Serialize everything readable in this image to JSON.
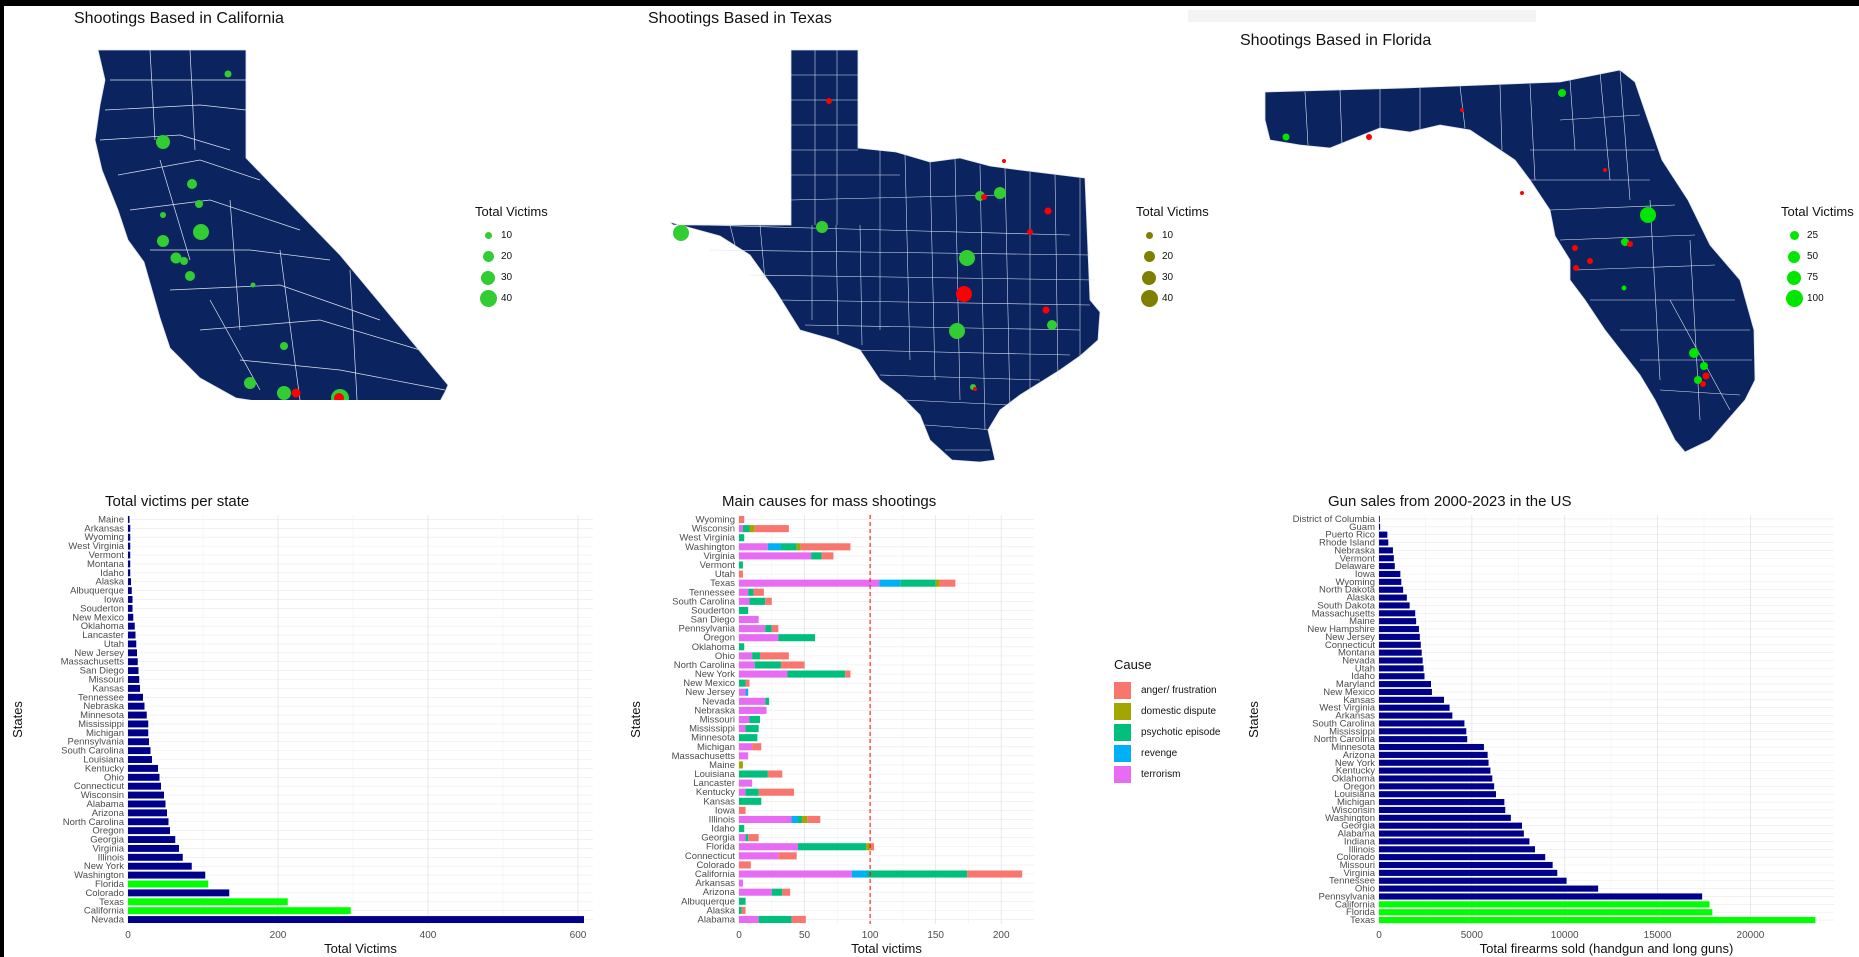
{
  "maps": [
    {
      "title": "Shootings Based in California",
      "legend_title": "Total Victims",
      "legend_labels": [
        "10",
        "20",
        "30",
        "40"
      ],
      "dot_color": "#32cd32"
    },
    {
      "title": "Shootings Based in Texas",
      "legend_title": "Total Victims",
      "legend_labels": [
        "10",
        "20",
        "30",
        "40"
      ],
      "dot_color": "#808000"
    },
    {
      "title": "Shootings Based in Florida",
      "legend_title": "Total Victims",
      "legend_labels": [
        "25",
        "50",
        "75",
        "100"
      ],
      "dot_color": "#00e600"
    }
  ],
  "colors": {
    "map_fill": "#0b2460",
    "point_green": "#32cd32",
    "point_red": "#ff0000",
    "bar_navy": "#00008b",
    "bar_green": "#00ff00"
  },
  "chart_data": [
    {
      "type": "bar",
      "orientation": "horizontal",
      "title": "Total victims per state",
      "xlabel": "Total Victims",
      "ylabel": "States",
      "xlim": [
        0,
        620
      ],
      "xticks": [
        0,
        200,
        400,
        600
      ],
      "highlight": [
        "Florida",
        "Texas",
        "California"
      ],
      "categories": [
        "Maine",
        "Arkansas",
        "Wyoming",
        "West Virginia",
        "Vermont",
        "Montana",
        "Idaho",
        "Alaska",
        "Albuquerque",
        "Iowa",
        "Souderton",
        "New Mexico",
        "Oklahoma",
        "Lancaster",
        "Utah",
        "New Jersey",
        "Massachusetts",
        "San Diego",
        "Missouri",
        "Kansas",
        "Tennessee",
        "Nebraska",
        "Minnesota",
        "Mississippi",
        "Michigan",
        "Pennsylvania",
        "South Carolina",
        "Louisiana",
        "Kentucky",
        "Ohio",
        "Connecticut",
        "Wisconsin",
        "Alabama",
        "Arizona",
        "North Carolina",
        "Oregon",
        "Georgia",
        "Virginia",
        "Illinois",
        "New York",
        "Washington",
        "Florida",
        "Colorado",
        "Texas",
        "California",
        "Nevada"
      ],
      "values": [
        2,
        3,
        3,
        3,
        3,
        3,
        3,
        4,
        5,
        6,
        6,
        7,
        9,
        10,
        11,
        12,
        13,
        14,
        15,
        16,
        20,
        22,
        25,
        27,
        27,
        28,
        30,
        32,
        40,
        42,
        44,
        48,
        50,
        52,
        54,
        56,
        63,
        68,
        73,
        85,
        103,
        107,
        135,
        213,
        297,
        608
      ]
    },
    {
      "type": "bar",
      "orientation": "horizontal",
      "stacked": true,
      "title": "Main causes for mass shootings",
      "xlabel": "Total victims",
      "ylabel": "States",
      "legend_title": "Cause",
      "reference_line": 100,
      "xlim": [
        0,
        225
      ],
      "xticks": [
        0,
        50,
        100,
        150,
        200
      ],
      "categories": [
        "Wyoming",
        "Wisconsin",
        "West Virginia",
        "Washington",
        "Virginia",
        "Vermont",
        "Utah",
        "Texas",
        "Tennessee",
        "South Carolina",
        "Souderton",
        "San Diego",
        "Pennsylvania",
        "Oregon",
        "Oklahoma",
        "Ohio",
        "North Carolina",
        "New York",
        "New Mexico",
        "New Jersey",
        "Nevada",
        "Nebraska",
        "Missouri",
        "Mississippi",
        "Minnesota",
        "Michigan",
        "Massachusetts",
        "Maine",
        "Louisiana",
        "Lancaster",
        "Kentucky",
        "Kansas",
        "Iowa",
        "Illinois",
        "Idaho",
        "Georgia",
        "Florida",
        "Connecticut",
        "Colorado",
        "California",
        "Arkansas",
        "Arizona",
        "Albuquerque",
        "Alaska",
        "Alabama"
      ],
      "series": [
        {
          "name": "terrorism",
          "color": "#e76bf3",
          "values": [
            0,
            3,
            0,
            22,
            55,
            0,
            0,
            107,
            7,
            8,
            0,
            15,
            20,
            30,
            0,
            10,
            12,
            37,
            0,
            5,
            20,
            21,
            8,
            5,
            0,
            10,
            7,
            0,
            0,
            10,
            5,
            0,
            0,
            40,
            0,
            5,
            45,
            30,
            0,
            86,
            3,
            25,
            0,
            0,
            15
          ]
        },
        {
          "name": "revenge",
          "color": "#00b0f6",
          "values": [
            0,
            0,
            0,
            10,
            0,
            0,
            0,
            16,
            0,
            0,
            0,
            0,
            0,
            0,
            0,
            0,
            0,
            0,
            0,
            2,
            0,
            0,
            0,
            0,
            0,
            0,
            0,
            0,
            0,
            0,
            0,
            0,
            0,
            5,
            0,
            0,
            0,
            0,
            0,
            12,
            0,
            0,
            0,
            0,
            0
          ]
        },
        {
          "name": "psychotic episode",
          "color": "#00bf7d",
          "values": [
            0,
            5,
            4,
            12,
            8,
            3,
            0,
            27,
            4,
            12,
            7,
            0,
            5,
            28,
            4,
            6,
            20,
            44,
            5,
            0,
            3,
            0,
            8,
            10,
            14,
            0,
            0,
            0,
            22,
            0,
            10,
            17,
            0,
            3,
            4,
            2,
            52,
            0,
            0,
            76,
            0,
            8,
            5,
            2,
            25
          ]
        },
        {
          "name": "domestic dispute",
          "color": "#a3a500",
          "values": [
            0,
            4,
            0,
            3,
            0,
            0,
            0,
            3,
            0,
            0,
            0,
            0,
            0,
            0,
            0,
            0,
            0,
            0,
            0,
            0,
            0,
            0,
            0,
            0,
            0,
            0,
            0,
            3,
            0,
            0,
            0,
            0,
            0,
            4,
            0,
            0,
            3,
            0,
            0,
            0,
            0,
            0,
            0,
            0,
            0
          ]
        },
        {
          "name": "anger/ frustration",
          "color": "#f8766d",
          "values": [
            4,
            26,
            0,
            38,
            9,
            0,
            3,
            12,
            8,
            5,
            0,
            0,
            5,
            0,
            0,
            22,
            18,
            4,
            3,
            0,
            0,
            0,
            0,
            0,
            0,
            7,
            0,
            0,
            11,
            0,
            27,
            0,
            5,
            10,
            0,
            8,
            3,
            14,
            9,
            42,
            0,
            6,
            0,
            3,
            11
          ]
        }
      ]
    },
    {
      "type": "bar",
      "orientation": "horizontal",
      "title": "Gun sales from 2000-2023 in the US",
      "xlabel": "Total firearms sold (handgun and long guns)",
      "ylabel": "States",
      "xlim": [
        0,
        24500
      ],
      "xticks": [
        0,
        5000,
        10000,
        15000,
        20000
      ],
      "highlight": [
        "California",
        "Florida",
        "Texas"
      ],
      "categories": [
        "District of Columbia",
        "Guam",
        "Puerto Rico",
        "Rhode Island",
        "Nebraska",
        "Vermont",
        "Delaware",
        "Iowa",
        "Wyoming",
        "North Dakota",
        "Alaska",
        "South Dakota",
        "Massachusetts",
        "Maine",
        "New Hampshire",
        "New Jersey",
        "Connecticut",
        "Montana",
        "Nevada",
        "Utah",
        "Idaho",
        "Maryland",
        "New Mexico",
        "Kansas",
        "West Virginia",
        "Arkansas",
        "South Carolina",
        "Mississippi",
        "North Carolina",
        "Minnesota",
        "Arizona",
        "New York",
        "Kentucky",
        "Oklahoma",
        "Oregon",
        "Louisiana",
        "Michigan",
        "Wisconsin",
        "Washington",
        "Georgia",
        "Alabama",
        "Indiana",
        "Illinois",
        "Colorado",
        "Missouri",
        "Virginia",
        "Tennessee",
        "Ohio",
        "Pennsylvania",
        "California",
        "Florida",
        "Texas"
      ],
      "values": [
        20,
        60,
        450,
        500,
        750,
        800,
        850,
        1150,
        1200,
        1300,
        1500,
        1650,
        1950,
        2000,
        2150,
        2200,
        2250,
        2300,
        2350,
        2400,
        2450,
        2800,
        2850,
        3500,
        3800,
        3950,
        4600,
        4700,
        4750,
        5650,
        5850,
        5900,
        6000,
        6100,
        6200,
        6300,
        6750,
        6800,
        7100,
        7700,
        7800,
        8100,
        8400,
        8950,
        9350,
        9600,
        10100,
        11800,
        17400,
        17800,
        17950,
        23500
      ]
    }
  ]
}
